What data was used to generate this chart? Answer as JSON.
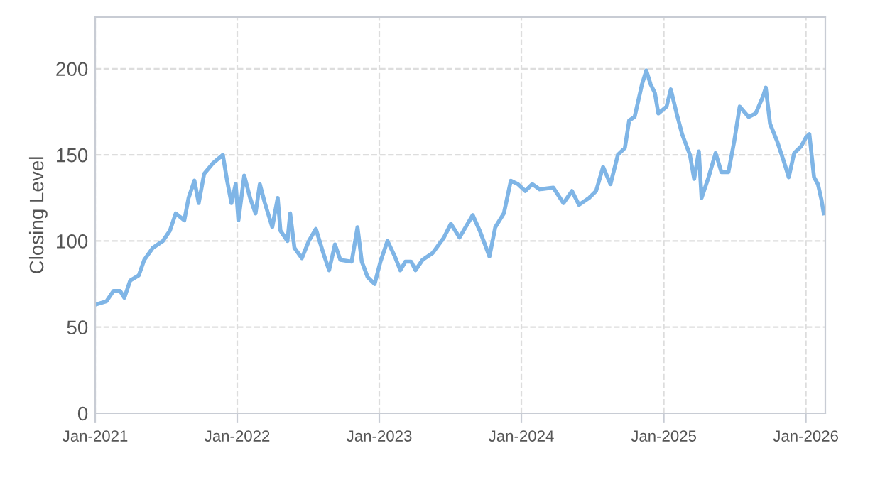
{
  "chart_data": {
    "type": "line",
    "ylabel": "Closing Level",
    "color": "#7fb5e6",
    "grid": true,
    "line_style": "solid",
    "marker": "none",
    "xlim": [
      "2021-01-01",
      "2026-02-20"
    ],
    "xticks": [
      {
        "value": "2021-01-01",
        "label": "Jan-2021"
      },
      {
        "value": "2022-01-01",
        "label": "Jan-2022"
      },
      {
        "value": "2023-01-01",
        "label": "Jan-2023"
      },
      {
        "value": "2024-01-01",
        "label": "Jan-2024"
      },
      {
        "value": "2025-01-01",
        "label": "Jan-2025"
      },
      {
        "value": "2026-01-01",
        "label": "Jan-2026"
      }
    ],
    "ylim": [
      0,
      230
    ],
    "yticks": [
      0,
      50,
      100,
      150,
      200
    ],
    "x": [
      "2021-01-01",
      "2021-01-30",
      "2021-02-17",
      "2021-03-06",
      "2021-03-17",
      "2021-04-01",
      "2021-04-23",
      "2021-05-07",
      "2021-05-29",
      "2021-06-24",
      "2021-07-12",
      "2021-07-27",
      "2021-08-18",
      "2021-08-29",
      "2021-09-13",
      "2021-09-24",
      "2021-10-08",
      "2021-10-30",
      "2021-11-25",
      "2021-12-06",
      "2021-12-17",
      "2021-12-28",
      "2022-01-04",
      "2022-01-19",
      "2022-02-03",
      "2022-02-17",
      "2022-02-28",
      "2022-03-13",
      "2022-04-01",
      "2022-04-15",
      "2022-04-22",
      "2022-05-10",
      "2022-05-17",
      "2022-05-28",
      "2022-06-16",
      "2022-07-04",
      "2022-07-22",
      "2022-08-10",
      "2022-08-25",
      "2022-09-09",
      "2022-09-23",
      "2022-10-22",
      "2022-11-06",
      "2022-11-17",
      "2022-12-02",
      "2022-12-20",
      "2023-01-04",
      "2023-01-22",
      "2023-02-10",
      "2023-02-24",
      "2023-03-09",
      "2023-03-24",
      "2023-04-04",
      "2023-04-22",
      "2023-05-18",
      "2023-06-16",
      "2023-07-04",
      "2023-07-26",
      "2023-08-29",
      "2023-09-16",
      "2023-10-11",
      "2023-10-26",
      "2023-11-17",
      "2023-12-05",
      "2023-12-23",
      "2024-01-11",
      "2024-01-29",
      "2024-02-17",
      "2024-03-23",
      "2024-04-18",
      "2024-05-10",
      "2024-05-28",
      "2024-06-23",
      "2024-07-11",
      "2024-07-29",
      "2024-08-17",
      "2024-09-05",
      "2024-09-23",
      "2024-10-04",
      "2024-10-18",
      "2024-11-06",
      "2024-11-17",
      "2024-11-28",
      "2024-12-09",
      "2024-12-18",
      "2025-01-08",
      "2025-01-19",
      "2025-02-03",
      "2025-02-17",
      "2025-03-09",
      "2025-03-20",
      "2025-04-01",
      "2025-04-08",
      "2025-04-26",
      "2025-05-14",
      "2025-05-29",
      "2025-06-16",
      "2025-07-01",
      "2025-07-15",
      "2025-08-07",
      "2025-08-25",
      "2025-09-13",
      "2025-09-20",
      "2025-10-01",
      "2025-10-19",
      "2025-11-07",
      "2025-11-18",
      "2025-12-02",
      "2025-12-20",
      "2026-01-01",
      "2026-01-10",
      "2026-01-22",
      "2026-02-01",
      "2026-02-10",
      "2026-02-16"
    ],
    "values": [
      63,
      65,
      71,
      71,
      67,
      77,
      80,
      89,
      96,
      100,
      106,
      116,
      112,
      125,
      135,
      122,
      139,
      145,
      150,
      135,
      122,
      133,
      112,
      138,
      125,
      116,
      133,
      122,
      108,
      125,
      106,
      100,
      116,
      96,
      90,
      100,
      107,
      93,
      83,
      98,
      89,
      88,
      108,
      88,
      79,
      75,
      88,
      100,
      91,
      83,
      88,
      88,
      83,
      89,
      93,
      102,
      110,
      102,
      115,
      106,
      91,
      108,
      116,
      135,
      133,
      129,
      133,
      130,
      131,
      122,
      129,
      121,
      125,
      129,
      143,
      133,
      150,
      154,
      170,
      172,
      191,
      199,
      191,
      186,
      174,
      178,
      188,
      174,
      162,
      150,
      136,
      152,
      125,
      137,
      151,
      140,
      140,
      158,
      178,
      172,
      174,
      184,
      189,
      168,
      158,
      145,
      137,
      151,
      155,
      160,
      162,
      137,
      133,
      124,
      116
    ]
  }
}
